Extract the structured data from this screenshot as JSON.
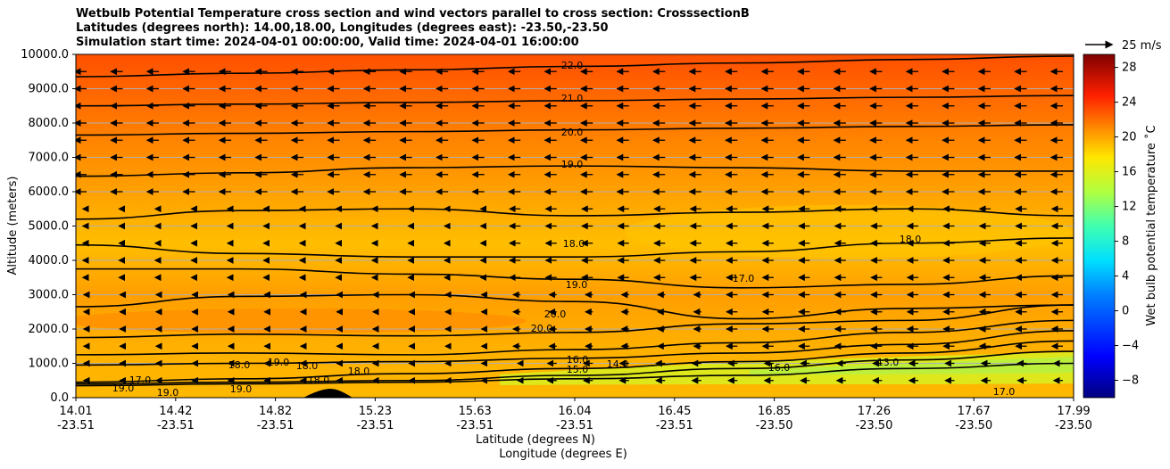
{
  "chart_data": {
    "type": "contour",
    "title_lines": [
      "Wetbulb Potential Temperature cross section and wind vectors parallel to cross section: CrosssectionB",
      "Latitudes (degrees north): 14.00,18.00, Longitudes (degrees east): -23.50,-23.50",
      "Simulation start time: 2024-04-01 00:00:00, Valid time: 2024-04-01 16:00:00"
    ],
    "ylabel": "Altitude (meters)",
    "xlabel_lat": "Latitude (degrees N)",
    "xlabel_lon": "Longitude (degrees E)",
    "ylim": [
      0,
      10000
    ],
    "y_ticks": [
      0,
      1000,
      2000,
      3000,
      4000,
      5000,
      6000,
      7000,
      8000,
      9000,
      10000
    ],
    "y_tick_labels": [
      "0.0",
      "1000.0",
      "2000.0",
      "3000.0",
      "4000.0",
      "5000.0",
      "6000.0",
      "7000.0",
      "8000.0",
      "9000.0",
      "10000.0"
    ],
    "x_ticks": [
      {
        "lat": "14.01",
        "lon": "-23.51"
      },
      {
        "lat": "14.42",
        "lon": "-23.51"
      },
      {
        "lat": "14.82",
        "lon": "-23.51"
      },
      {
        "lat": "15.23",
        "lon": "-23.51"
      },
      {
        "lat": "15.63",
        "lon": "-23.51"
      },
      {
        "lat": "16.04",
        "lon": "-23.51"
      },
      {
        "lat": "16.45",
        "lon": "-23.51"
      },
      {
        "lat": "16.85",
        "lon": "-23.50"
      },
      {
        "lat": "17.26",
        "lon": "-23.50"
      },
      {
        "lat": "17.67",
        "lon": "-23.50"
      },
      {
        "lat": "17.99",
        "lon": "-23.50"
      }
    ],
    "contours": [
      {
        "level": 22.0,
        "label": "22.0",
        "altitudes": [
          9350,
          9450,
          9550,
          9650,
          9750,
          9850,
          9950
        ]
      },
      {
        "level": 21.0,
        "label": "21.0",
        "altitudes": [
          8500,
          8550,
          8600,
          8650,
          8700,
          8750,
          8800
        ]
      },
      {
        "level": 20.0,
        "label": "20.0",
        "altitudes": [
          7650,
          7700,
          7750,
          7800,
          7850,
          7900,
          7950
        ]
      },
      {
        "level": 19.0,
        "label": "19.0",
        "altitudes": [
          6450,
          6550,
          6700,
          6750,
          6700,
          6600,
          6600
        ]
      },
      {
        "level": 18.0,
        "label": "18.0",
        "altitudes": [
          5200,
          5450,
          5500,
          5300,
          5400,
          5500,
          5300
        ]
      },
      {
        "level": 18.0,
        "label": "18.0",
        "altitudes": [
          4450,
          4200,
          4100,
          4100,
          4250,
          4500,
          4650
        ]
      },
      {
        "level": 19.0,
        "label": "19.0",
        "altitudes": [
          3750,
          3750,
          3600,
          3450,
          3200,
          3300,
          3550
        ]
      },
      {
        "level": 20.0,
        "label": "20.0",
        "altitudes": [
          2650,
          2950,
          3000,
          2800,
          2300,
          2600,
          2700
        ]
      },
      {
        "level": 20.0,
        "label": "20.0",
        "altitudes": [
          1750,
          1850,
          1800,
          1900,
          2150,
          2250,
          2700
        ]
      },
      {
        "level": 19.0,
        "label": "19.0",
        "altitudes": [
          1250,
          1300,
          1250,
          1400,
          1600,
          1900,
          2250
        ]
      },
      {
        "level": 18.0,
        "label": "18.0",
        "altitudes": [
          950,
          1000,
          1050,
          1150,
          1300,
          1550,
          1950
        ]
      },
      {
        "level": 17.0,
        "label": "17.0",
        "altitudes": [
          450,
          550,
          700,
          850,
          1050,
          1300,
          1650
        ]
      },
      {
        "level": 16.0,
        "label": "16.0",
        "altitudes": [
          400,
          450,
          500,
          650,
          850,
          1100,
          1350
        ]
      },
      {
        "level": 15.0,
        "label": "15.0",
        "altitudes": [
          350,
          400,
          450,
          550,
          650,
          850,
          1000
        ]
      }
    ],
    "inline_labels": [
      "22.0",
      "21.0",
      "20.0",
      "19.0",
      "18.0",
      "19.0",
      "20.0",
      "20.0",
      "18.0",
      "17.0",
      "18.0",
      "19.0",
      "18.0",
      "19.0",
      "17.0",
      "18.0",
      "16.0",
      "15.0",
      "14.0",
      "13.0",
      "17.0",
      "19.0",
      "19.0",
      "18.0",
      "16.0"
    ],
    "colorbar": {
      "label": "Wet bulb potential temperature ˚C",
      "ticks": [
        28,
        24,
        20,
        16,
        12,
        8,
        4,
        0,
        -4,
        -8
      ],
      "tick_labels": [
        "28",
        "24",
        "20",
        "16",
        "12",
        "8",
        "4",
        "0",
        "−4",
        "−8"
      ],
      "range": [
        -10,
        29.5
      ]
    },
    "quiver_key": {
      "label": "25 m/s",
      "speed": 25
    },
    "wind": {
      "direction": "towards south (negative along section)",
      "typical_speed_ms": 8
    }
  }
}
